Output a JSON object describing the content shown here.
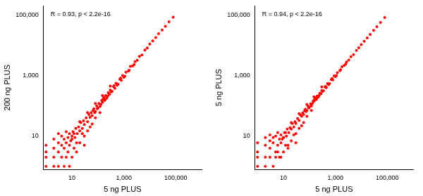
{
  "chart_data": [
    {
      "type": "scatter",
      "x_label": "5 ng PLUS",
      "y_label": "200 ng PLUS",
      "annotation": "R = 0.93, p < 2.2e-16",
      "color": "#ff0000",
      "marker": "circle",
      "log": true,
      "grid": false,
      "xlim": [
        0.8,
        1000000
      ],
      "ylim": [
        0.8,
        200000
      ],
      "xticks": [
        10,
        {
          "value": 1000,
          "label": "1,000"
        },
        {
          "value": 100000,
          "label": "100,000"
        }
      ],
      "yticks": [
        10,
        {
          "value": 1000,
          "label": "1,000"
        },
        {
          "value": 100000,
          "label": "100,000"
        }
      ],
      "x": [
        1,
        1,
        1,
        1,
        2,
        2,
        2,
        2,
        3,
        3,
        3,
        3,
        4,
        4,
        4,
        5,
        5,
        5,
        6,
        6,
        6,
        7,
        7,
        8,
        8,
        8,
        9,
        10,
        10,
        12,
        12,
        15,
        10,
        11,
        13,
        14,
        16,
        18,
        20,
        22,
        25,
        28,
        30,
        35,
        40,
        45,
        50,
        55,
        60,
        70,
        80,
        90,
        100,
        110,
        120,
        140,
        150,
        170,
        180,
        200,
        220,
        250,
        280,
        300,
        350,
        400,
        450,
        500,
        600,
        700,
        800,
        900,
        1000,
        1200,
        1500,
        1800,
        2200,
        2700,
        3300,
        4000,
        5000,
        6500,
        8000,
        10000,
        13000,
        17000,
        22000,
        30000,
        40000,
        55000,
        80000,
        20,
        30,
        40,
        60,
        80,
        120,
        30,
        50,
        25,
        15,
        20,
        40,
        80,
        150,
        300,
        65,
        75,
        95,
        130,
        160,
        190,
        240,
        320,
        420,
        550,
        750,
        1100,
        1600,
        2500
      ],
      "values": [
        1,
        2,
        3,
        5,
        1,
        2,
        4,
        8,
        1,
        3,
        6,
        12,
        2,
        5,
        10,
        1,
        4,
        8,
        2,
        6,
        14,
        3,
        9,
        1,
        5,
        12,
        7,
        2,
        10,
        4,
        12,
        3,
        8,
        14,
        9,
        18,
        12,
        20,
        15,
        28,
        18,
        32,
        24,
        40,
        30,
        52,
        42,
        60,
        48,
        80,
        65,
        100,
        85,
        120,
        95,
        150,
        130,
        190,
        150,
        220,
        180,
        270,
        240,
        330,
        300,
        430,
        380,
        560,
        520,
        760,
        700,
        1000,
        880,
        1300,
        1400,
        2000,
        2100,
        2900,
        3200,
        4300,
        4800,
        7000,
        8200,
        11000,
        14000,
        18000,
        24000,
        32000,
        42000,
        60000,
        85000,
        6,
        10,
        15,
        25,
        40,
        60,
        5,
        20,
        12,
        6,
        30,
        60,
        120,
        220,
        450,
        70,
        60,
        80,
        110,
        170,
        160,
        210,
        290,
        460,
        480,
        820,
        950,
        1500,
        2300
      ]
    },
    {
      "type": "scatter",
      "x_label": "5 ng PLUS",
      "y_label": "5 ng PLUS",
      "annotation": "R = 0.94, p < 2.2e-16",
      "color": "#ff0000",
      "marker": "circle",
      "log": true,
      "grid": false,
      "xlim": [
        0.8,
        1000000
      ],
      "ylim": [
        0.8,
        200000
      ],
      "xticks": [
        10,
        {
          "value": 1000,
          "label": "1,000"
        },
        {
          "value": 100000,
          "label": "100,000"
        }
      ],
      "yticks": [
        10,
        {
          "value": 1000,
          "label": "1,000"
        },
        {
          "value": 100000,
          "label": "100,000"
        }
      ],
      "x": [
        1,
        1,
        1,
        1,
        2,
        2,
        2,
        2,
        3,
        3,
        3,
        3,
        4,
        4,
        4,
        5,
        5,
        5,
        6,
        6,
        6,
        7,
        7,
        8,
        8,
        8,
        9,
        10,
        10,
        12,
        12,
        15,
        10,
        11,
        13,
        14,
        16,
        18,
        20,
        22,
        25,
        28,
        30,
        35,
        40,
        45,
        50,
        55,
        60,
        70,
        80,
        90,
        100,
        110,
        120,
        140,
        150,
        170,
        180,
        200,
        220,
        250,
        280,
        300,
        350,
        400,
        450,
        500,
        600,
        700,
        800,
        900,
        1000,
        1200,
        1500,
        1800,
        2200,
        2700,
        3300,
        4000,
        5000,
        6500,
        8000,
        10000,
        13000,
        17000,
        22000,
        30000,
        40000,
        55000,
        80000,
        20,
        30,
        40,
        60,
        80,
        120,
        30,
        50,
        25,
        15,
        20,
        40,
        80,
        150,
        300,
        65,
        75,
        95,
        130,
        160,
        190,
        240,
        320,
        420,
        550,
        750,
        1100,
        1600,
        2500
      ],
      "values": [
        1,
        3,
        2,
        6,
        2,
        1,
        5,
        9,
        2,
        4,
        7,
        11,
        1,
        6,
        9,
        2,
        3,
        10,
        3,
        5,
        13,
        2,
        8,
        2,
        6,
        11,
        8,
        3,
        9,
        5,
        13,
        4,
        9,
        13,
        10,
        17,
        13,
        19,
        17,
        26,
        20,
        30,
        26,
        38,
        33,
        50,
        45,
        58,
        52,
        77,
        70,
        95,
        90,
        115,
        100,
        145,
        140,
        185,
        160,
        210,
        195,
        260,
        255,
        320,
        315,
        420,
        400,
        540,
        540,
        740,
        720,
        980,
        920,
        1250,
        1450,
        1950,
        2150,
        2800,
        3250,
        4200,
        4900,
        6800,
        8300,
        10500,
        13500,
        17500,
        23000,
        31000,
        41000,
        57000,
        82000,
        7,
        12,
        18,
        28,
        45,
        70,
        6,
        22,
        11,
        5,
        28,
        55,
        110,
        200,
        420,
        68,
        65,
        85,
        120,
        165,
        170,
        220,
        300,
        440,
        500,
        800,
        1000,
        1550,
        2400
      ]
    }
  ]
}
